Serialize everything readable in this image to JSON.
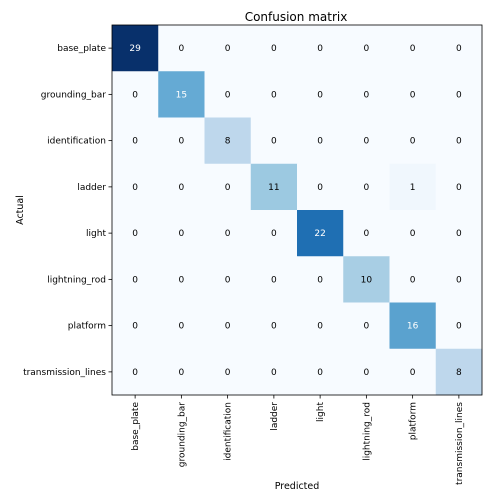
{
  "chart_data": {
    "type": "heatmap",
    "title": "Confusion matrix",
    "xlabel": "Predicted",
    "ylabel": "Actual",
    "x_categories": [
      "base_plate",
      "grounding_bar",
      "identification",
      "ladder",
      "light",
      "lightning_rod",
      "platform",
      "transmission_lines"
    ],
    "y_categories": [
      "base_plate",
      "grounding_bar",
      "identification",
      "ladder",
      "light",
      "lightning_rod",
      "platform",
      "transmission_lines"
    ],
    "values": [
      [
        29,
        0,
        0,
        0,
        0,
        0,
        0,
        0
      ],
      [
        0,
        15,
        0,
        0,
        0,
        0,
        0,
        0
      ],
      [
        0,
        0,
        8,
        0,
        0,
        0,
        0,
        0
      ],
      [
        0,
        0,
        0,
        11,
        0,
        0,
        1,
        0
      ],
      [
        0,
        0,
        0,
        0,
        22,
        0,
        0,
        0
      ],
      [
        0,
        0,
        0,
        0,
        0,
        10,
        0,
        0
      ],
      [
        0,
        0,
        0,
        0,
        0,
        0,
        16,
        0
      ],
      [
        0,
        0,
        0,
        0,
        0,
        0,
        0,
        8
      ]
    ],
    "colormap": "Blues",
    "vmin": 0,
    "vmax": 29
  }
}
